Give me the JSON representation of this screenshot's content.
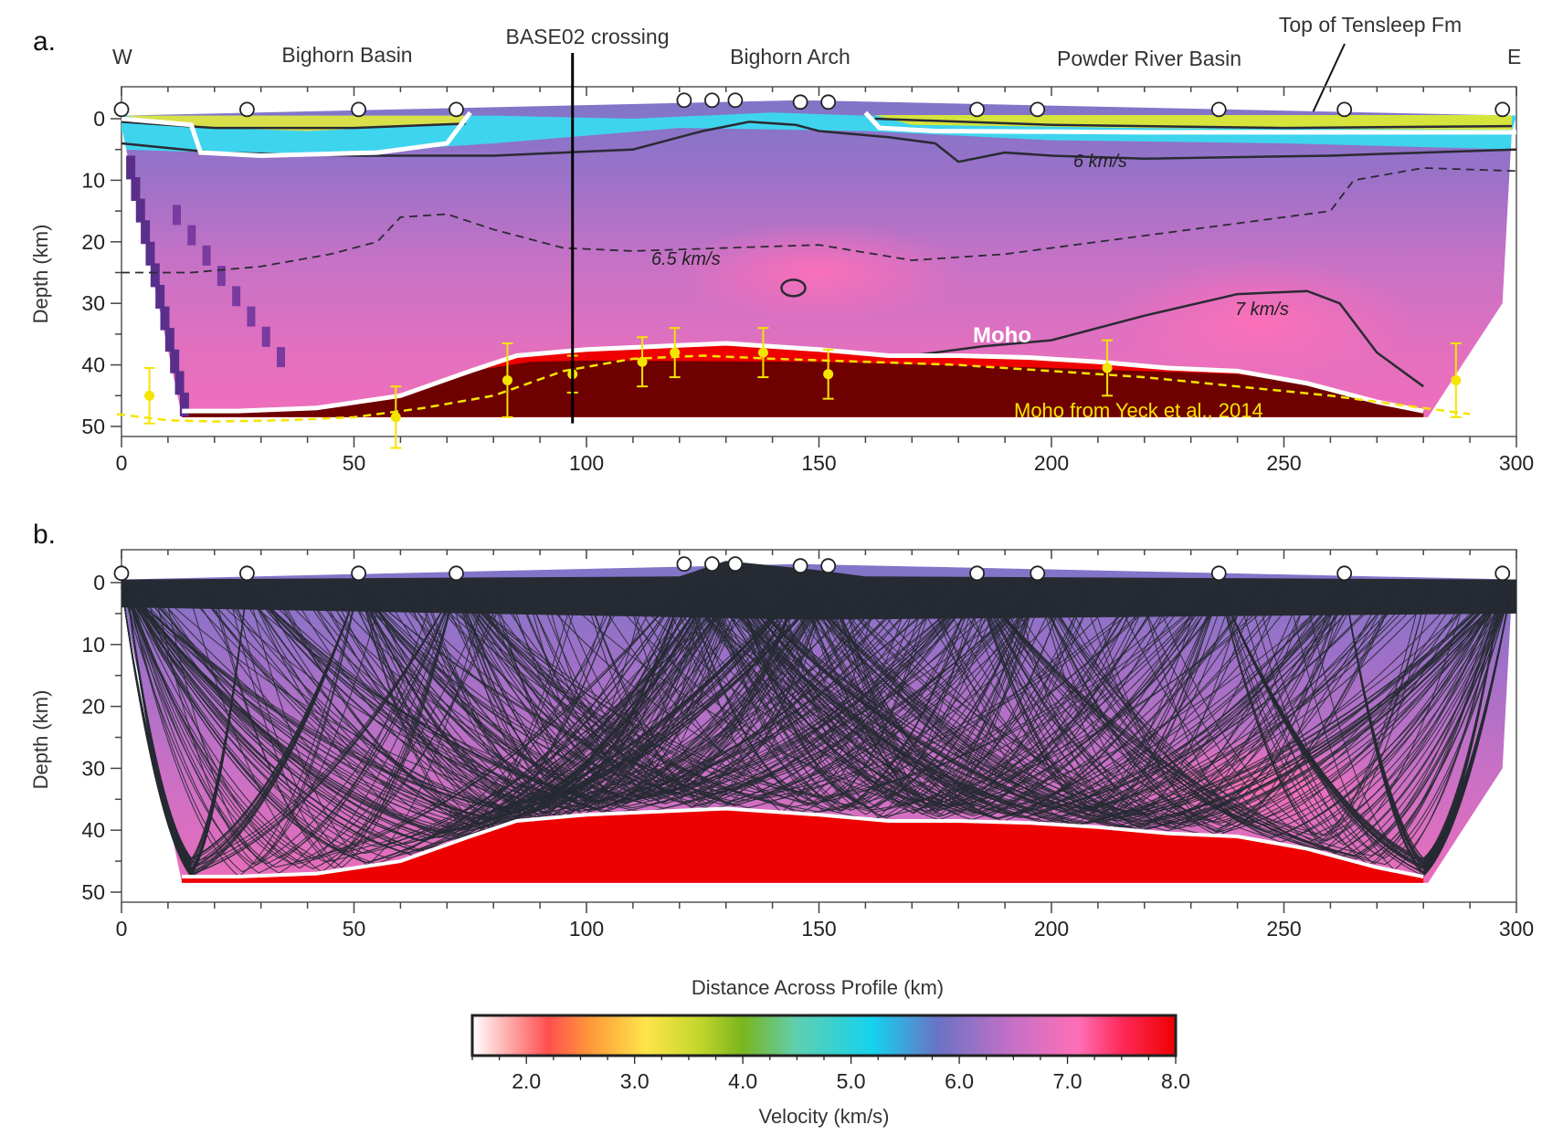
{
  "colors": {
    "moho_line": "#ffffff",
    "yeck_moho": "#f5e400",
    "mantle_fill": "#ee0000",
    "mantle_dark": "#6e0000",
    "ray_color": "#262a33",
    "contour_color": "#2a2a33"
  },
  "panel_a": {
    "letter": "a.",
    "west": "W",
    "east": "E",
    "regions": [
      "Bighorn Basin",
      "Bighorn Arch",
      "Powder River Basin"
    ],
    "crossing_label": "BASE02 crossing",
    "tensleep_label": "Top of Tensleep Fm",
    "contour_labels": [
      "6 km/s",
      "6.5 km/s",
      "7 km/s"
    ],
    "moho_label": "Moho",
    "yeck_label": "Moho from Yeck et al., 2014",
    "ylabel": "Depth (km)"
  },
  "panel_b": {
    "letter": "b.",
    "ylabel": "Depth (km)"
  },
  "shared_xlabel": "Distance Across Profile (km)",
  "colorbar": {
    "label": "Velocity (km/s)",
    "ticks": [
      "2.0",
      "3.0",
      "4.0",
      "5.0",
      "6.0",
      "7.0",
      "8.0"
    ],
    "range": [
      1.5,
      8.0
    ],
    "stops": [
      {
        "v": 1.5,
        "color": "#ffffff"
      },
      {
        "v": 2.2,
        "color": "#ff4f4f"
      },
      {
        "v": 2.6,
        "color": "#ff9a3a"
      },
      {
        "v": 3.1,
        "color": "#ffe44a"
      },
      {
        "v": 3.6,
        "color": "#c3d62c"
      },
      {
        "v": 4.0,
        "color": "#7ab51d"
      },
      {
        "v": 4.5,
        "color": "#5fcfb0"
      },
      {
        "v": 5.2,
        "color": "#14d2ee"
      },
      {
        "v": 5.8,
        "color": "#6a73c6"
      },
      {
        "v": 6.5,
        "color": "#c670c6"
      },
      {
        "v": 7.1,
        "color": "#ff6fb7"
      },
      {
        "v": 7.5,
        "color": "#ff2a5a"
      },
      {
        "v": 8.0,
        "color": "#ee0000"
      }
    ]
  },
  "chart_data": [
    {
      "panel": "a",
      "type": "heatmap",
      "title": "",
      "xlabel": "",
      "ylabel": "Depth (km)",
      "xlim": [
        0,
        300
      ],
      "ylim": [
        50,
        -5
      ],
      "x_ticks": [
        0,
        50,
        100,
        150,
        200,
        250,
        300
      ],
      "y_ticks": [
        0,
        10,
        20,
        30,
        40,
        50
      ],
      "stations_x": [
        0,
        27,
        51,
        72,
        121,
        127,
        132,
        146,
        152,
        184,
        197,
        236,
        263,
        297
      ],
      "crossing_x": 97,
      "moho_depth": {
        "x": [
          13,
          25,
          42,
          60,
          75,
          85,
          100,
          115,
          130,
          150,
          165,
          180,
          195,
          210,
          225,
          240,
          255,
          270,
          280
        ],
        "depth": [
          47.5,
          47.5,
          47,
          45,
          41,
          38.5,
          37.5,
          37,
          36.5,
          37.5,
          38.5,
          38.5,
          38.8,
          39.5,
          40.5,
          41,
          43,
          46,
          47.5
        ]
      },
      "yeck_moho": {
        "x": [
          -1,
          10,
          20,
          35,
          50,
          65,
          80,
          95,
          110,
          125,
          140,
          160,
          180,
          200,
          220,
          240,
          260,
          280,
          290
        ],
        "depth": [
          48,
          49,
          49.2,
          49,
          48.5,
          47,
          45,
          41,
          39,
          38.5,
          39,
          39.5,
          40,
          41,
          42,
          43.5,
          45,
          47,
          48
        ]
      },
      "moho_points": [
        {
          "x": 6,
          "depth": 45,
          "err": 4.5
        },
        {
          "x": 59,
          "depth": 48.5,
          "err": 5
        },
        {
          "x": 83,
          "depth": 42.5,
          "err": 6
        },
        {
          "x": 97,
          "depth": 41.5,
          "err": 3
        },
        {
          "x": 112,
          "depth": 39.5,
          "err": 4
        },
        {
          "x": 119,
          "depth": 38,
          "err": 4
        },
        {
          "x": 138,
          "depth": 38,
          "err": 4
        },
        {
          "x": 152,
          "depth": 41.5,
          "err": 4
        },
        {
          "x": 212,
          "depth": 40.5,
          "err": 4.5
        },
        {
          "x": 287,
          "depth": 42.5,
          "err": 6
        }
      ]
    },
    {
      "panel": "b",
      "type": "heatmap",
      "title": "",
      "xlabel": "Distance Across Profile (km)",
      "ylabel": "Depth (km)",
      "xlim": [
        0,
        300
      ],
      "ylim": [
        50,
        -5
      ],
      "x_ticks": [
        0,
        50,
        100,
        150,
        200,
        250,
        300
      ],
      "y_ticks": [
        0,
        10,
        20,
        30,
        40,
        50
      ],
      "stations_x": [
        0,
        27,
        51,
        72,
        121,
        127,
        132,
        146,
        152,
        184,
        197,
        236,
        263,
        297
      ],
      "moho_depth": {
        "x": [
          13,
          25,
          42,
          60,
          75,
          85,
          100,
          115,
          130,
          150,
          165,
          180,
          195,
          210,
          225,
          240,
          255,
          270,
          280
        ],
        "depth": [
          47.5,
          47.5,
          47,
          45,
          41,
          38.5,
          37.5,
          37,
          36.5,
          37.5,
          38.5,
          38.5,
          38.8,
          39.5,
          40.5,
          41,
          43,
          46,
          47.5
        ]
      }
    }
  ]
}
